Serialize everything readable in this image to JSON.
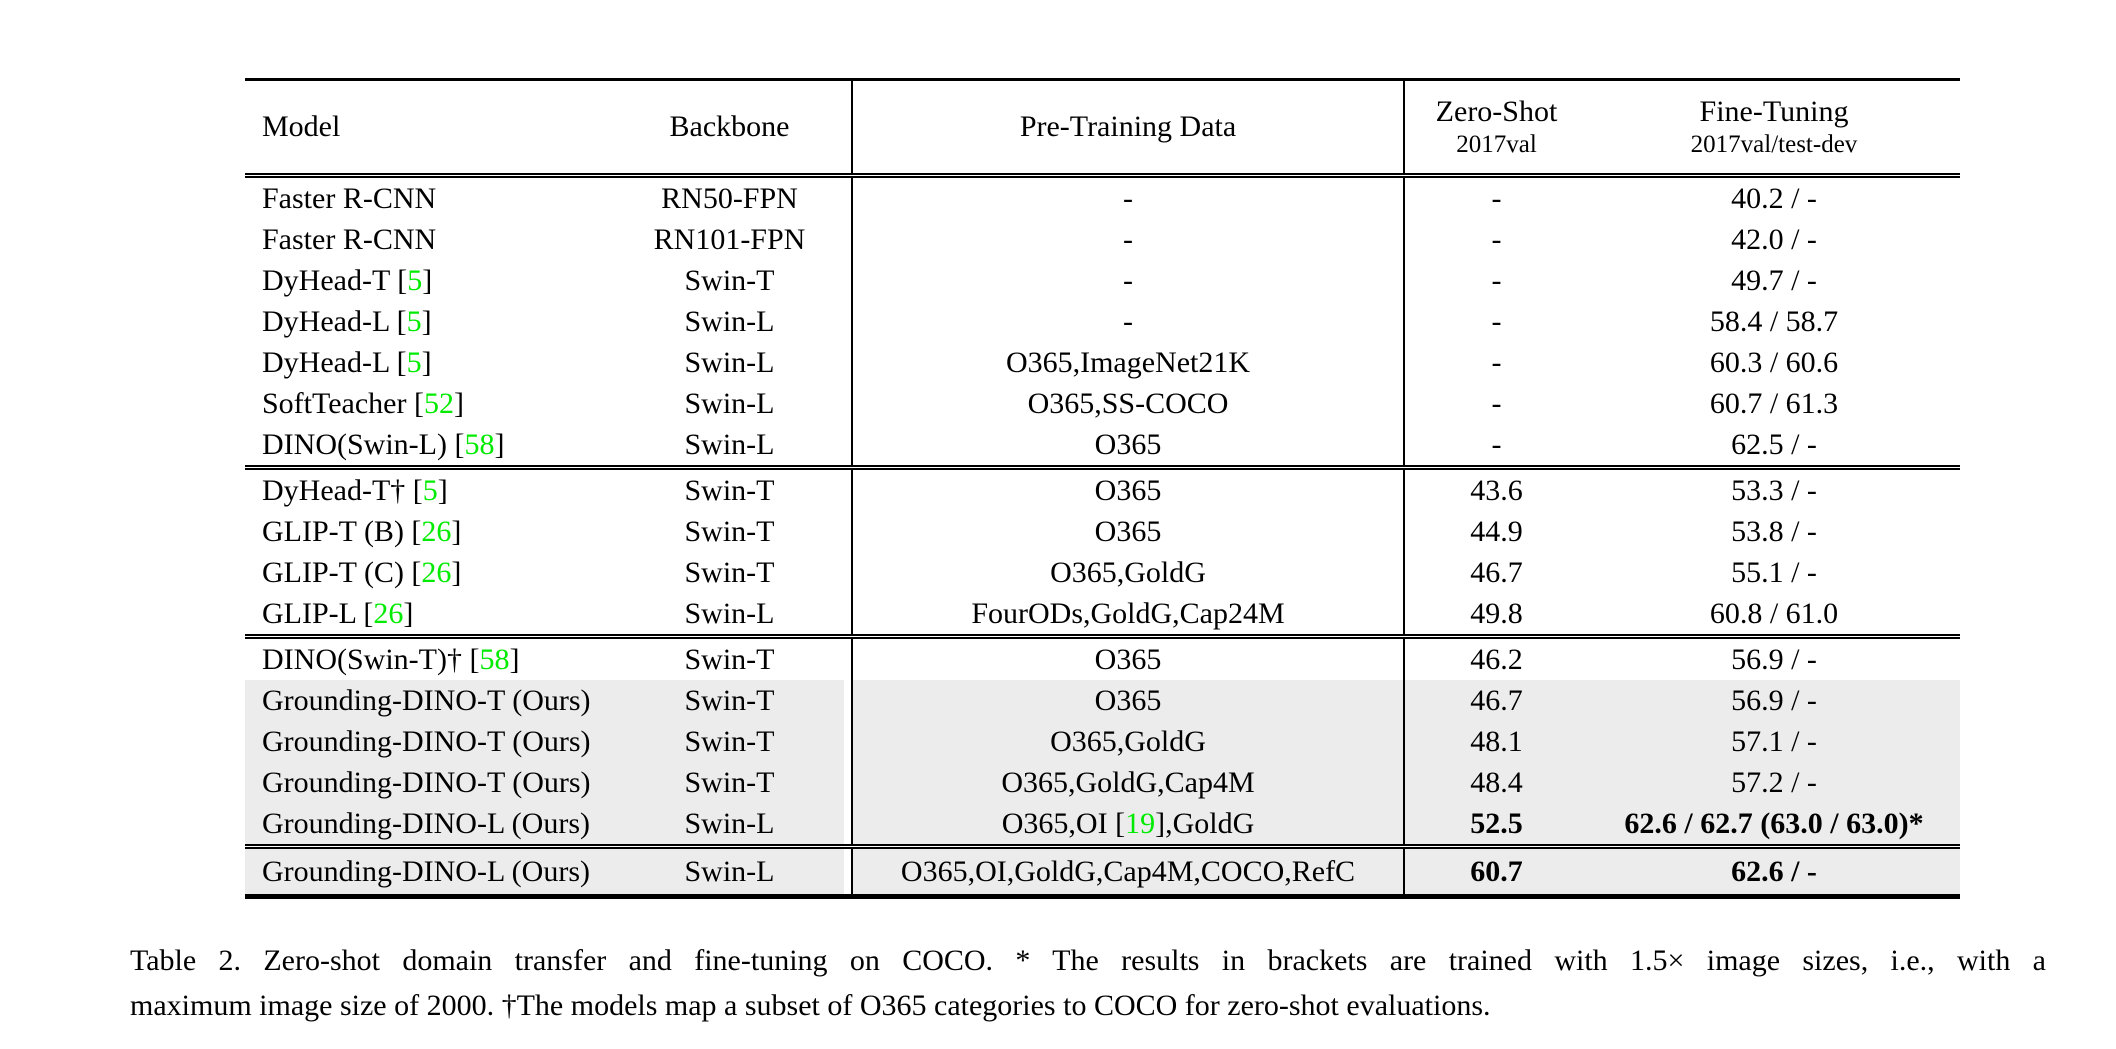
{
  "colors": {
    "citation_green": "#00EB00",
    "row_highlight_gray": "#ececec",
    "rule_black": "#000000",
    "page_background": "#ffffff"
  },
  "table": {
    "columns": {
      "model": "Model",
      "backbone": "Backbone",
      "pretrain": "Pre-Training Data",
      "zeroshot": {
        "title": "Zero-Shot",
        "subtitle": "2017val"
      },
      "finetune": {
        "title": "Fine-Tuning",
        "subtitle": "2017val/test-dev"
      }
    },
    "sections": [
      {
        "rows": [
          {
            "model": "Faster R-CNN",
            "backbone": "RN50-FPN",
            "pretrain": "-",
            "zeroshot": "-",
            "finetune": "40.2 / -"
          },
          {
            "model": "Faster R-CNN",
            "backbone": "RN101-FPN",
            "pretrain": "-",
            "zeroshot": "-",
            "finetune": "42.0 / -"
          },
          {
            "model": "DyHead-T [«5»]",
            "backbone": "Swin-T",
            "pretrain": "-",
            "zeroshot": "-",
            "finetune": "49.7 / -"
          },
          {
            "model": "DyHead-L [«5»]",
            "backbone": "Swin-L",
            "pretrain": "-",
            "zeroshot": "-",
            "finetune": "58.4 / 58.7"
          },
          {
            "model": "DyHead-L [«5»]",
            "backbone": "Swin-L",
            "pretrain": "O365,ImageNet21K",
            "zeroshot": "-",
            "finetune": "60.3 / 60.6"
          },
          {
            "model": "SoftTeacher [«52»]",
            "backbone": "Swin-L",
            "pretrain": "O365,SS-COCO",
            "zeroshot": "-",
            "finetune": "60.7 / 61.3"
          },
          {
            "model": "DINO(Swin-L) [«58»]",
            "backbone": "Swin-L",
            "pretrain": "O365",
            "zeroshot": "-",
            "finetune": "62.5 / -"
          }
        ]
      },
      {
        "rows": [
          {
            "model": "DyHead-T† [«5»]",
            "backbone": "Swin-T",
            "pretrain": "O365",
            "zeroshot": "43.6",
            "finetune": "53.3 / -"
          },
          {
            "model": "GLIP-T (B) [«26»]",
            "backbone": "Swin-T",
            "pretrain": "O365",
            "zeroshot": "44.9",
            "finetune": "53.8 / -"
          },
          {
            "model": "GLIP-T (C) [«26»]",
            "backbone": "Swin-T",
            "pretrain": "O365,GoldG",
            "zeroshot": "46.7",
            "finetune": "55.1 / -"
          },
          {
            "model": "GLIP-L [«26»]",
            "backbone": "Swin-L",
            "pretrain": "FourODs,GoldG,Cap24M",
            "zeroshot": "49.8",
            "finetune": "60.8 / 61.0"
          }
        ]
      },
      {
        "rows": [
          {
            "model": "DINO(Swin-T)† [«58»]",
            "backbone": "Swin-T",
            "pretrain": "O365",
            "zeroshot": "46.2",
            "finetune": "56.9 / -"
          },
          {
            "model": "Grounding-DINO-T (Ours)",
            "backbone": "Swin-T",
            "pretrain": "O365",
            "zeroshot": "46.7",
            "finetune": "56.9 / -",
            "highlight": true
          },
          {
            "model": "Grounding-DINO-T (Ours)",
            "backbone": "Swin-T",
            "pretrain": "O365,GoldG",
            "zeroshot": "48.1",
            "finetune": "57.1 / -",
            "highlight": true
          },
          {
            "model": "Grounding-DINO-T (Ours)",
            "backbone": "Swin-T",
            "pretrain": "O365,GoldG,Cap4M",
            "zeroshot": "48.4",
            "finetune": "57.2 / -",
            "highlight": true
          },
          {
            "model": "Grounding-DINO-L (Ours)",
            "backbone": "Swin-L",
            "pretrain": "O365,OI [«19»],GoldG",
            "zeroshot": "52.5",
            "finetune": "62.6 / 62.7 (63.0 / 63.0)*",
            "highlight": true,
            "bold_metrics": true
          }
        ]
      },
      {
        "tall": true,
        "rows": [
          {
            "model": "Grounding-DINO-L (Ours)",
            "backbone": "Swin-L",
            "pretrain": "O365,OI,GoldG,Cap4M,COCO,RefC",
            "zeroshot": "60.7",
            "finetune": "62.6 / -",
            "highlight": true,
            "bold_metrics": true
          }
        ]
      }
    ]
  },
  "caption": {
    "line1": "Table 2. Zero-shot domain transfer and fine-tuning on COCO. * The results in brackets are trained with 1.5× image sizes, i.e., with a",
    "line2": "maximum image size of 2000. †The models map a subset of O365 categories to COCO for zero-shot evaluations."
  }
}
